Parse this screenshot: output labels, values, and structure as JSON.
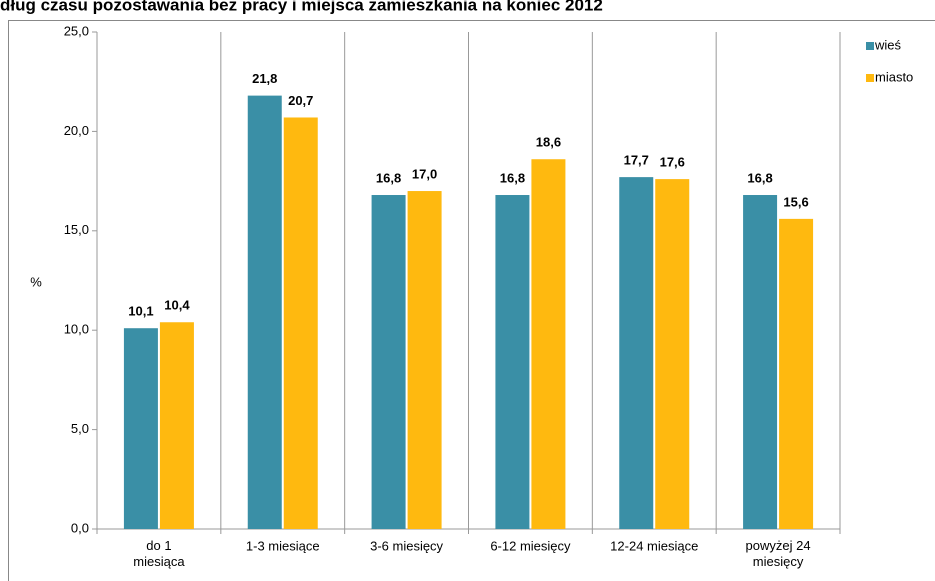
{
  "chart_data": {
    "type": "bar",
    "title": "dług czasu pozostawania bez pracy i miejsca zamieszkania na koniec 2012",
    "y_label": "%",
    "categories": [
      "do 1 miesiąca",
      "1-3 miesiące",
      "3-6 miesięcy",
      "6-12 miesięcy",
      "12-24 miesiące",
      "powyżej 24 miesięcy"
    ],
    "series": [
      {
        "name": "wieś",
        "color": "#3a8fa6",
        "values": [
          10.1,
          21.8,
          16.8,
          16.8,
          17.7,
          16.8
        ],
        "value_labels": [
          "10,1",
          "21,8",
          "16,8",
          "16,8",
          "17,7",
          "16,8"
        ]
      },
      {
        "name": "miasto",
        "color": "#ffb90f",
        "values": [
          10.4,
          20.7,
          17.0,
          18.6,
          17.6,
          15.6
        ],
        "value_labels": [
          "10,4",
          "20,7",
          "17,0",
          "18,6",
          "17,6",
          "15,6"
        ]
      }
    ],
    "ylim": [
      0,
      25
    ],
    "yticks": [
      {
        "value": 0,
        "label": "0,0"
      },
      {
        "value": 5,
        "label": "5,0"
      },
      {
        "value": 10,
        "label": "10,0"
      },
      {
        "value": 15,
        "label": "15,0"
      },
      {
        "value": 20,
        "label": "20,0"
      },
      {
        "value": 25,
        "label": "25,0"
      }
    ],
    "legend": "right"
  }
}
